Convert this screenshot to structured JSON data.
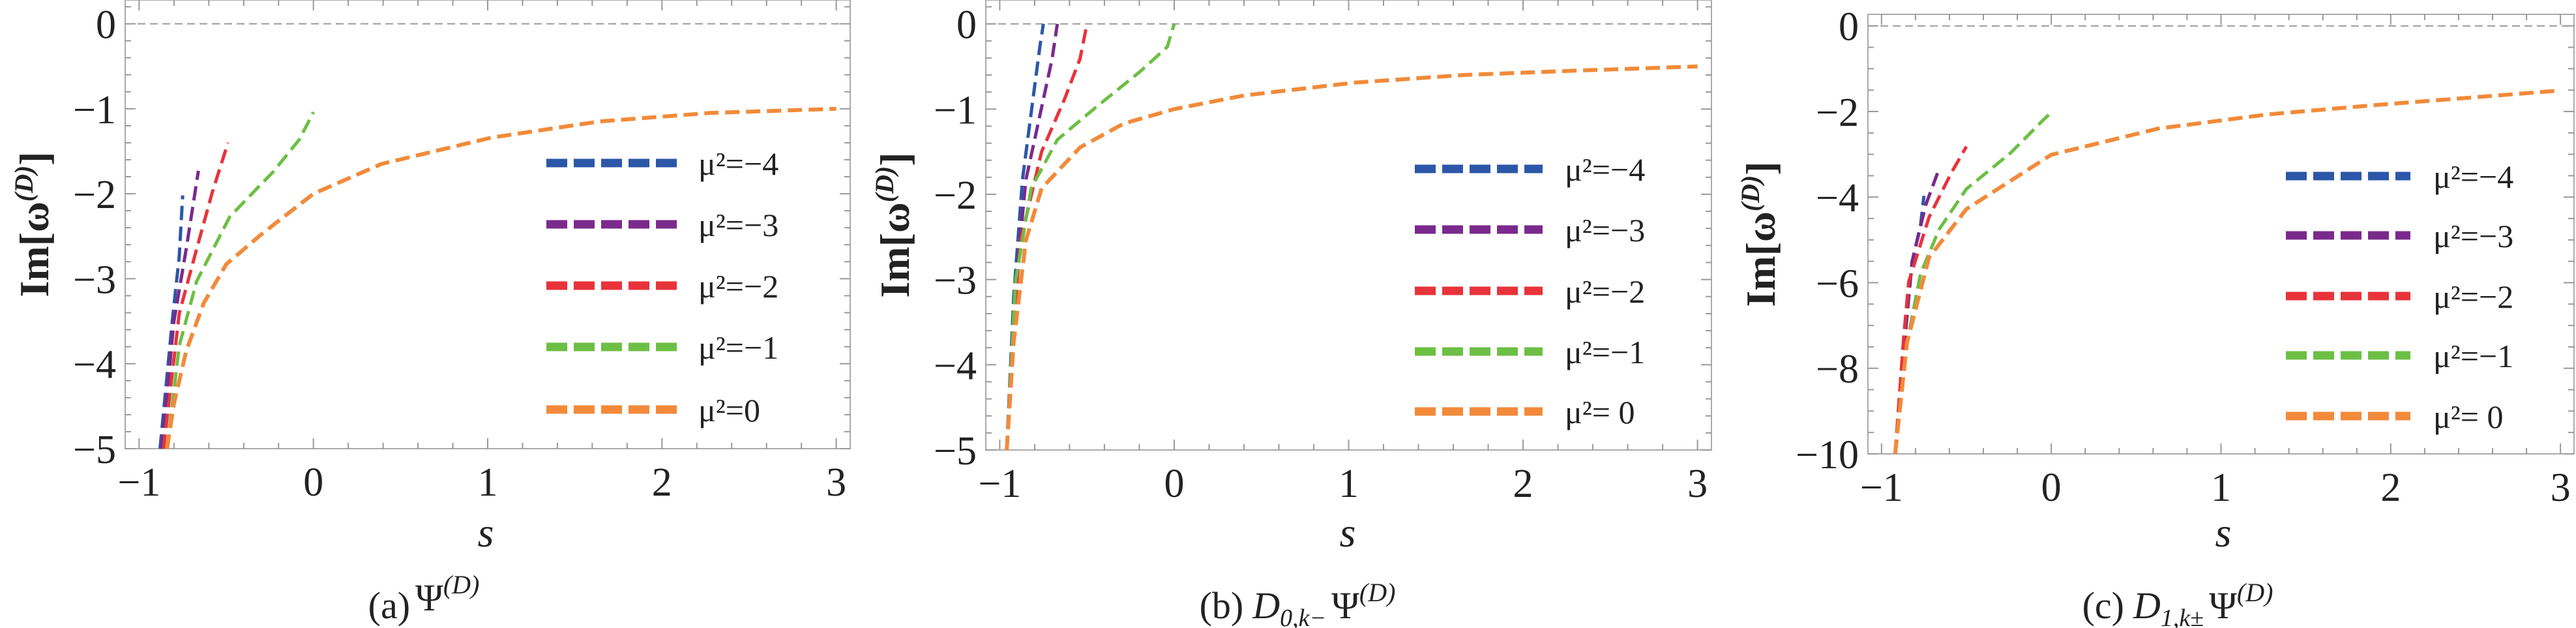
{
  "chart_data": [
    {
      "type": "line",
      "caption": {
        "tag": "(a)",
        "op": "",
        "op_sub": "",
        "psi": "Ψ",
        "sup": "(D)"
      },
      "xlabel": "s",
      "ylabel": {
        "main": "Im[ω",
        "sup": "(D)",
        "close": "]"
      },
      "xlim": [
        -1.08,
        3.08
      ],
      "ylim": [
        -5,
        0.28
      ],
      "xticks": [
        -1,
        0,
        1,
        2,
        3
      ],
      "yticks": [
        0,
        -1,
        -2,
        -3,
        -4,
        -5
      ],
      "yminor_step": 0.2,
      "reference_line_y": 0,
      "legend_placement": "right",
      "series": [
        {
          "name": "μ²=−4",
          "color": "#2c57a8",
          "points": [
            [
              -0.88,
              -5
            ],
            [
              -0.81,
              -3.5
            ],
            [
              -0.77,
              -2.74
            ],
            [
              -0.75,
              -2.02
            ]
          ]
        },
        {
          "name": "μ²=−3",
          "color": "#7a2a8c",
          "points": [
            [
              -0.87,
              -5
            ],
            [
              -0.8,
              -3.5
            ],
            [
              -0.73,
              -2.65
            ],
            [
              -0.66,
              -1.73
            ]
          ]
        },
        {
          "name": "μ²=−2",
          "color": "#e8333a",
          "points": [
            [
              -0.86,
              -5
            ],
            [
              -0.77,
              -3.41
            ],
            [
              -0.67,
              -2.65
            ],
            [
              -0.58,
              -1.98
            ],
            [
              -0.49,
              -1.4
            ]
          ]
        },
        {
          "name": "μ²=−1",
          "color": "#6cbf44",
          "points": [
            [
              -0.84,
              -5
            ],
            [
              -0.77,
              -3.79
            ],
            [
              -0.67,
              -3.03
            ],
            [
              -0.48,
              -2.27
            ],
            [
              -0.23,
              -1.74
            ],
            [
              -0.08,
              -1.36
            ],
            [
              0,
              -1.04
            ]
          ]
        },
        {
          "name": "μ²=0",
          "color": "#f28a3a",
          "points": [
            [
              -0.84,
              -5
            ],
            [
              -0.8,
              -4.47
            ],
            [
              -0.73,
              -3.85
            ],
            [
              -0.63,
              -3.29
            ],
            [
              -0.5,
              -2.83
            ],
            [
              -0.3,
              -2.48
            ],
            [
              0,
              -2
            ],
            [
              0.39,
              -1.65
            ],
            [
              1.02,
              -1.34
            ],
            [
              1.64,
              -1.15
            ],
            [
              2.27,
              -1.05
            ],
            [
              3,
              -1
            ]
          ]
        }
      ]
    },
    {
      "type": "line",
      "caption": {
        "tag": "(b)",
        "op": "D",
        "op_sub": "0,k−",
        "psi": "Ψ",
        "sup": "(D)"
      },
      "xlabel": "s",
      "ylabel": {
        "main": "Im[ω",
        "sup": "(D)",
        "close": "]"
      },
      "xlim": [
        -1.08,
        3.08
      ],
      "ylim": [
        -5,
        0.28
      ],
      "xticks": [
        -1,
        0,
        1,
        2,
        3
      ],
      "yticks": [
        0,
        -1,
        -2,
        -3,
        -4,
        -5
      ],
      "yminor_step": 0.2,
      "reference_line_y": 0,
      "legend_placement": "right",
      "series": [
        {
          "name": "μ²=−4",
          "color": "#2c57a8",
          "points": [
            [
              -0.96,
              -5
            ],
            [
              -0.92,
              -3.2
            ],
            [
              -0.87,
              -1.83
            ],
            [
              -0.81,
              -0.89
            ],
            [
              -0.77,
              -0.27
            ],
            [
              -0.75,
              0
            ]
          ]
        },
        {
          "name": "μ²=−3",
          "color": "#7a2a8c",
          "points": [
            [
              -0.96,
              -5
            ],
            [
              -0.91,
              -3.1
            ],
            [
              -0.85,
              -1.83
            ],
            [
              -0.76,
              -0.98
            ],
            [
              -0.7,
              -0.41
            ],
            [
              -0.67,
              0
            ]
          ]
        },
        {
          "name": "μ²=−2",
          "color": "#e8333a",
          "points": [
            [
              -0.96,
              -5
            ],
            [
              -0.92,
              -3.5
            ],
            [
              -0.88,
              -2.54
            ],
            [
              -0.76,
              -1.5
            ],
            [
              -0.63,
              -0.89
            ],
            [
              -0.54,
              -0.41
            ],
            [
              -0.5,
              0
            ]
          ]
        },
        {
          "name": "μ²=−1",
          "color": "#6cbf44",
          "points": [
            [
              -0.96,
              -5
            ],
            [
              -0.91,
              -3.02
            ],
            [
              -0.82,
              -1.93
            ],
            [
              -0.67,
              -1.36
            ],
            [
              -0.45,
              -0.98
            ],
            [
              -0.19,
              -0.55
            ],
            [
              -0.04,
              -0.27
            ],
            [
              0,
              0
            ]
          ]
        },
        {
          "name": "μ²= 0",
          "color": "#f28a3a",
          "points": [
            [
              -0.96,
              -5
            ],
            [
              -0.92,
              -3.73
            ],
            [
              -0.85,
              -2.54
            ],
            [
              -0.76,
              -1.93
            ],
            [
              -0.54,
              -1.45
            ],
            [
              -0.29,
              -1.17
            ],
            [
              0,
              -1
            ],
            [
              0.4,
              -0.84
            ],
            [
              1.03,
              -0.69
            ],
            [
              1.66,
              -0.6
            ],
            [
              2.28,
              -0.55
            ],
            [
              3,
              -0.5
            ]
          ]
        }
      ]
    },
    {
      "type": "line",
      "caption": {
        "tag": "(c)",
        "op": "D",
        "op_sub": "1,k±",
        "psi": "Ψ",
        "sup": "(D)"
      },
      "xlabel": "s",
      "ylabel": {
        "main": "Im[ω",
        "sup": "(D)",
        "close": "]"
      },
      "xlim": [
        -1.08,
        3.08
      ],
      "ylim": [
        -10,
        0.27
      ],
      "xticks": [
        -1,
        0,
        1,
        2,
        3
      ],
      "yticks": [
        0,
        -2,
        -4,
        -6,
        -8,
        -10
      ],
      "yminor_step": 0.5,
      "reference_line_y": 0,
      "legend_placement": "right",
      "series": [
        {
          "name": "μ²=−4",
          "color": "#2c57a8",
          "points": [
            [
              -0.92,
              -10
            ],
            [
              -0.86,
              -7.2
            ],
            [
              -0.82,
              -5.51
            ],
            [
              -0.77,
              -4.66
            ],
            [
              -0.75,
              -3.97
            ]
          ]
        },
        {
          "name": "μ²=−3",
          "color": "#7a2a8c",
          "points": [
            [
              -0.92,
              -10
            ],
            [
              -0.86,
              -7.2
            ],
            [
              -0.82,
              -5.51
            ],
            [
              -0.74,
              -4.19
            ],
            [
              -0.67,
              -3.44
            ]
          ]
        },
        {
          "name": "μ²=−2",
          "color": "#e8333a",
          "points": [
            [
              -0.92,
              -10
            ],
            [
              -0.87,
              -7.3
            ],
            [
              -0.84,
              -5.98
            ],
            [
              -0.72,
              -4.47
            ],
            [
              -0.59,
              -3.44
            ],
            [
              -0.5,
              -2.82
            ]
          ]
        },
        {
          "name": "μ²=−1",
          "color": "#6cbf44",
          "points": [
            [
              -0.92,
              -10
            ],
            [
              -0.85,
              -7.4
            ],
            [
              -0.77,
              -5.79
            ],
            [
              -0.66,
              -4.75
            ],
            [
              -0.5,
              -3.81
            ],
            [
              -0.24,
              -2.97
            ],
            [
              -0.05,
              -2.21
            ],
            [
              0,
              -2.02
            ]
          ]
        },
        {
          "name": "μ²= 0",
          "color": "#f28a3a",
          "points": [
            [
              -0.92,
              -10
            ],
            [
              -0.85,
              -7.4
            ],
            [
              -0.72,
              -5.41
            ],
            [
              -0.5,
              -4.28
            ],
            [
              0,
              -3.01
            ],
            [
              0.63,
              -2.4
            ],
            [
              1.27,
              -2.07
            ],
            [
              1.91,
              -1.85
            ],
            [
              3,
              -1.51
            ]
          ]
        }
      ]
    }
  ]
}
